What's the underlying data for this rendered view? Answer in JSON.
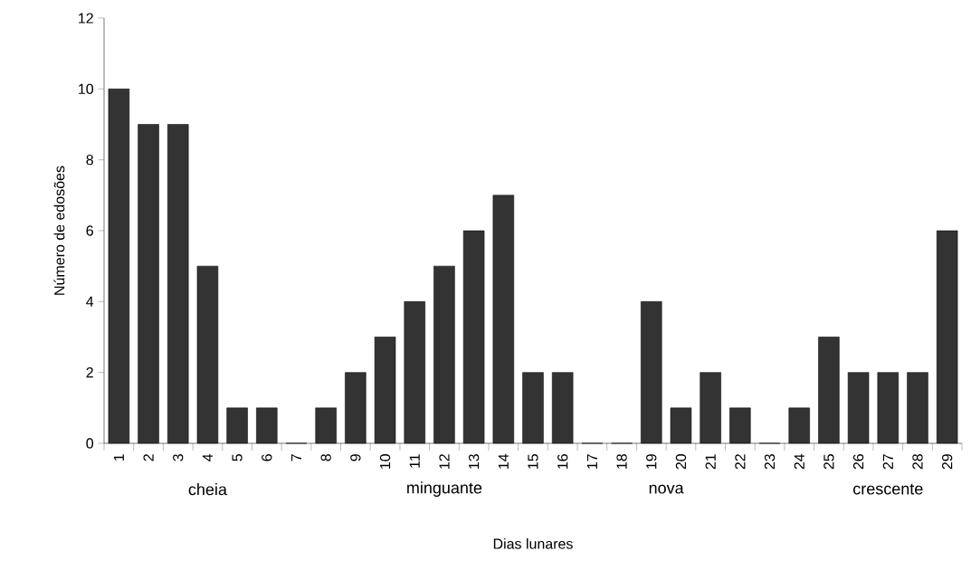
{
  "chart_data": {
    "type": "bar",
    "xlabel": "Dias lunares",
    "ylabel": "Número de edosões",
    "categories": [
      "1",
      "2",
      "3",
      "4",
      "5",
      "6",
      "7",
      "8",
      "9",
      "10",
      "11",
      "12",
      "13",
      "14",
      "15",
      "16",
      "17",
      "18",
      "19",
      "20",
      "21",
      "22",
      "23",
      "24",
      "25",
      "26",
      "27",
      "28",
      "29"
    ],
    "values": [
      10,
      9,
      9,
      5,
      1,
      1,
      0,
      1,
      2,
      3,
      4,
      5,
      6,
      7,
      2,
      2,
      0,
      0,
      4,
      1,
      2,
      1,
      0,
      1,
      3,
      2,
      2,
      2,
      6
    ],
    "color": "#333333",
    "ylim": [
      0,
      12
    ],
    "yticks": [
      0,
      2,
      4,
      6,
      8,
      10,
      12
    ],
    "annotations": [
      "cheia",
      "minguante",
      "nova",
      "crescente"
    ]
  }
}
